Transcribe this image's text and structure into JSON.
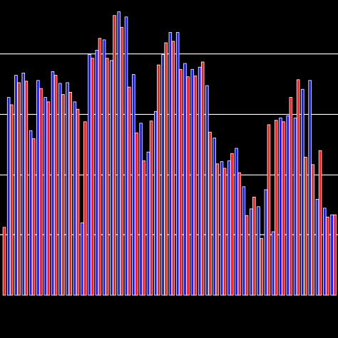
{
  "chart_data": {
    "type": "bar",
    "grid": "horizontal",
    "background_color": "#000000",
    "gridline_color": "#ffffff",
    "bar_edge_color": "#ffffff",
    "series": [
      {
        "color": "#1a1aff",
        "values": [
          0,
          268,
          298,
          301,
          223,
          291,
          268,
          303,
          287,
          288,
          262,
          98,
          326,
          332,
          346,
          318,
          384,
          377,
          299,
          233,
          194,
          249,
          326,
          356,
          356,
          314,
          306,
          309,
          284,
          213,
          181,
          182,
          199,
          147,
          117,
          120,
          143,
          86,
          240,
          243,
          240,
          279,
          291,
          130,
          118,
          109
        ]
      },
      {
        "color": "#ff1a1a",
        "values": [
          92,
          258,
          288,
          290,
          212,
          280,
          262,
          298,
          272,
          275,
          252,
          235,
          321,
          348,
          321,
          379,
          363,
          282,
          220,
          182,
          236,
          312,
          342,
          344,
          306,
          296,
          297,
          316,
          221,
          178,
          172,
          192,
          166,
          108,
          133,
          77,
          231,
          237,
          235,
          268,
          292,
          187,
          177,
          196,
          106,
          109
        ]
      }
    ],
    "y_max": 400,
    "gridline_values": [
      82,
      163,
      245,
      327
    ]
  }
}
